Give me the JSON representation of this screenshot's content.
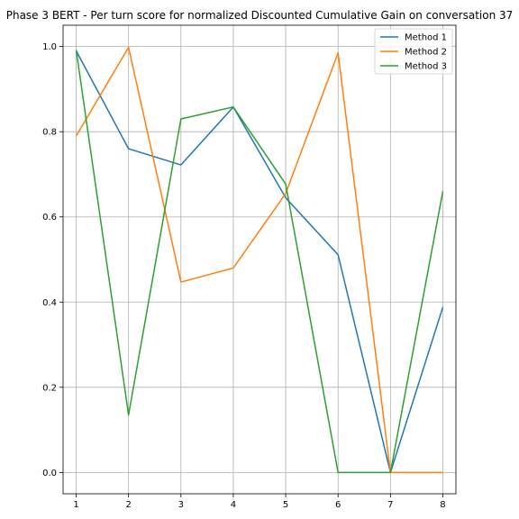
{
  "chart_data": {
    "type": "line",
    "title": "Phase 3 BERT - Per turn score for normalized Discounted Cumulative Gain on conversation 37",
    "xlabel": "",
    "ylabel": "",
    "x": [
      1,
      2,
      3,
      4,
      5,
      6,
      7,
      8
    ],
    "xlim": [
      0.75,
      8.25
    ],
    "ylim": [
      -0.05,
      1.05
    ],
    "xticks": [
      1,
      2,
      3,
      4,
      5,
      6,
      7,
      8
    ],
    "yticks": [
      0.0,
      0.2,
      0.4,
      0.6,
      0.8,
      1.0
    ],
    "grid": true,
    "legend_position": "top-right",
    "series": [
      {
        "name": "Method 1",
        "color": "#1f77b4",
        "values": [
          0.99,
          0.76,
          0.722,
          0.858,
          0.645,
          0.511,
          0.0,
          0.388
        ]
      },
      {
        "name": "Method 2",
        "color": "#ff7f0e",
        "values": [
          0.79,
          0.998,
          0.447,
          0.48,
          0.655,
          0.985,
          0.0,
          0.0
        ]
      },
      {
        "name": "Method 3",
        "color": "#2ca02c",
        "values": [
          0.992,
          0.135,
          0.83,
          0.858,
          0.677,
          0.0,
          0.0,
          0.66
        ]
      }
    ]
  }
}
